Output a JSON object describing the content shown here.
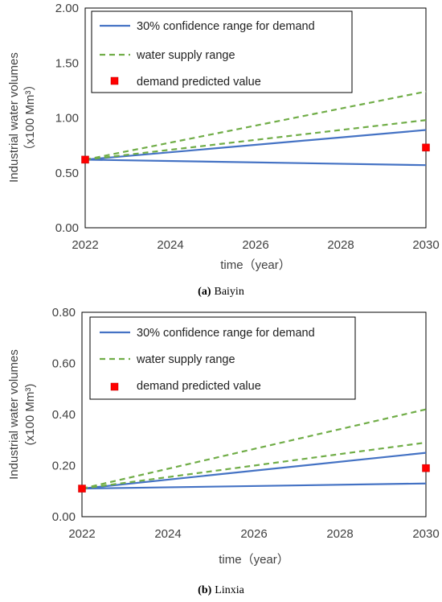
{
  "chart_data": [
    {
      "type": "line",
      "caption_letter": "(a)",
      "caption_text": "Baiyin",
      "xlabel": "time（year）",
      "ylabel_line1": "Industrial water volumes",
      "ylabel_line2": "（x100 Mm³）",
      "xlim": [
        2022,
        2030
      ],
      "ylim": [
        0,
        2
      ],
      "x_ticks": [
        "2022",
        "2024",
        "2026",
        "2028",
        "2030"
      ],
      "y_ticks": [
        "0.00",
        "0.50",
        "1.00",
        "1.50",
        "2.00"
      ],
      "legend_position": "top-left",
      "series": [
        {
          "name": "30% confidence range for demand",
          "style": "solid",
          "color": "#4472c4",
          "lines": [
            {
              "x": [
                2022,
                2030
              ],
              "y": [
                0.62,
                0.89
              ]
            },
            {
              "x": [
                2022,
                2030
              ],
              "y": [
                0.62,
                0.57
              ]
            }
          ]
        },
        {
          "name": "water supply range",
          "style": "dashed",
          "color": "#70ad47",
          "lines": [
            {
              "x": [
                2022,
                2030
              ],
              "y": [
                0.62,
                1.24
              ]
            },
            {
              "x": [
                2022,
                2030
              ],
              "y": [
                0.62,
                0.98
              ]
            }
          ]
        },
        {
          "name": "demand predicted value",
          "style": "marker",
          "color": "#ff0000",
          "points": {
            "x": [
              2022,
              2030
            ],
            "y": [
              0.62,
              0.73
            ]
          }
        }
      ]
    },
    {
      "type": "line",
      "caption_letter": "(b)",
      "caption_text": "Linxia",
      "xlabel": "time（year）",
      "ylabel_line1": "Industrial water volumes",
      "ylabel_line2": "(x100 Mm³)",
      "xlim": [
        2022,
        2030
      ],
      "ylim": [
        0,
        0.8
      ],
      "x_ticks": [
        "2022",
        "2024",
        "2026",
        "2028",
        "2030"
      ],
      "y_ticks": [
        "0.00",
        "0.20",
        "0.40",
        "0.60",
        "0.80"
      ],
      "legend_position": "top-left",
      "series": [
        {
          "name": "30% confidence range for demand",
          "style": "solid",
          "color": "#4472c4",
          "lines": [
            {
              "x": [
                2022,
                2030
              ],
              "y": [
                0.11,
                0.25
              ]
            },
            {
              "x": [
                2022,
                2030
              ],
              "y": [
                0.11,
                0.13
              ]
            }
          ]
        },
        {
          "name": "water supply range",
          "style": "dashed",
          "color": "#70ad47",
          "lines": [
            {
              "x": [
                2022,
                2030
              ],
              "y": [
                0.11,
                0.42
              ]
            },
            {
              "x": [
                2022,
                2030
              ],
              "y": [
                0.11,
                0.29
              ]
            }
          ]
        },
        {
          "name": "demand predicted value",
          "style": "marker",
          "color": "#ff0000",
          "points": {
            "x": [
              2022,
              2030
            ],
            "y": [
              0.11,
              0.19
            ]
          }
        }
      ]
    }
  ]
}
